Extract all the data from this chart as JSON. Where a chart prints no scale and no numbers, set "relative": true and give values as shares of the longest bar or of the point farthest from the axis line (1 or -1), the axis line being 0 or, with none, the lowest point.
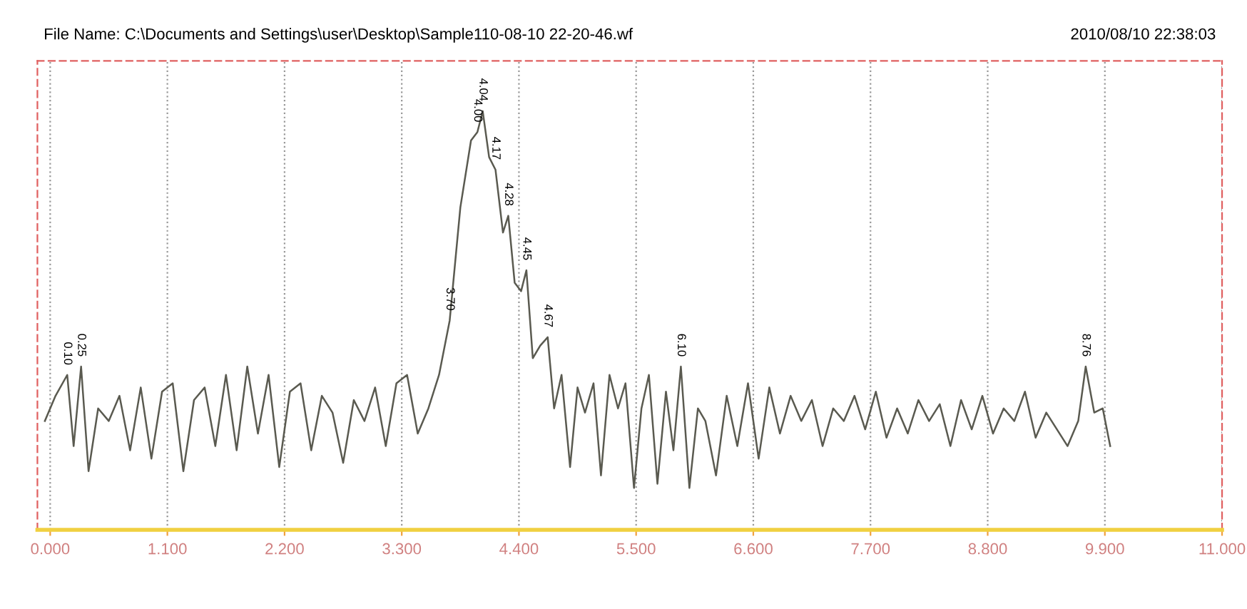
{
  "chart_data": {
    "type": "line",
    "relative": true,
    "title": "File Name: C:\\Documents and Settings\\user\\Desktop\\Sample110-08-10 22-20-46.wf",
    "annotations": [
      "2010/08/10 22:38:03",
      {
        "text": "0.10",
        "x": 0.16,
        "y": 0.37
      },
      {
        "text": "0.25",
        "x": 0.29,
        "y": 0.39
      },
      {
        "text": "3.70",
        "x": 3.75,
        "y": 0.5
      },
      {
        "text": "4.00",
        "x": 4.01,
        "y": 0.95
      },
      {
        "text": "4.04",
        "x": 4.06,
        "y": 1.0
      },
      {
        "text": "4.17",
        "x": 4.18,
        "y": 0.86
      },
      {
        "text": "4.28",
        "x": 4.3,
        "y": 0.75
      },
      {
        "text": "4.45",
        "x": 4.47,
        "y": 0.62
      },
      {
        "text": "4.67",
        "x": 4.67,
        "y": 0.46
      },
      {
        "text": "6.10",
        "x": 5.92,
        "y": 0.39
      },
      {
        "text": "8.76",
        "x": 9.72,
        "y": 0.39
      }
    ],
    "x": [
      -0.05,
      0.05,
      0.16,
      0.22,
      0.29,
      0.36,
      0.45,
      0.55,
      0.65,
      0.75,
      0.85,
      0.95,
      1.05,
      1.15,
      1.25,
      1.35,
      1.45,
      1.55,
      1.65,
      1.75,
      1.85,
      1.95,
      2.05,
      2.15,
      2.25,
      2.35,
      2.45,
      2.55,
      2.65,
      2.75,
      2.85,
      2.95,
      3.05,
      3.15,
      3.25,
      3.35,
      3.45,
      3.55,
      3.65,
      3.75,
      3.85,
      3.95,
      4.01,
      4.06,
      4.12,
      4.18,
      4.25,
      4.3,
      4.36,
      4.42,
      4.47,
      4.53,
      4.6,
      4.67,
      4.73,
      4.8,
      4.88,
      4.95,
      5.02,
      5.1,
      5.17,
      5.25,
      5.33,
      5.4,
      5.48,
      5.55,
      5.62,
      5.7,
      5.78,
      5.85,
      5.92,
      6.0,
      6.08,
      6.15,
      6.25,
      6.35,
      6.45,
      6.55,
      6.65,
      6.75,
      6.85,
      6.95,
      7.05,
      7.15,
      7.25,
      7.35,
      7.45,
      7.55,
      7.65,
      7.75,
      7.85,
      7.95,
      8.05,
      8.15,
      8.25,
      8.35,
      8.45,
      8.55,
      8.65,
      8.75,
      8.85,
      8.95,
      9.05,
      9.15,
      9.25,
      9.35,
      9.45,
      9.55,
      9.65,
      9.72,
      9.8,
      9.88,
      9.95
    ],
    "series": [
      {
        "color": "#5a5a50",
        "values": [
          0.26,
          0.32,
          0.37,
          0.2,
          0.39,
          0.14,
          0.29,
          0.26,
          0.32,
          0.19,
          0.34,
          0.17,
          0.33,
          0.35,
          0.14,
          0.31,
          0.34,
          0.2,
          0.37,
          0.19,
          0.39,
          0.23,
          0.37,
          0.15,
          0.33,
          0.35,
          0.19,
          0.32,
          0.28,
          0.16,
          0.31,
          0.26,
          0.34,
          0.2,
          0.35,
          0.37,
          0.23,
          0.29,
          0.37,
          0.5,
          0.77,
          0.93,
          0.95,
          1.0,
          0.89,
          0.86,
          0.71,
          0.75,
          0.59,
          0.57,
          0.62,
          0.41,
          0.44,
          0.46,
          0.29,
          0.37,
          0.15,
          0.34,
          0.28,
          0.35,
          0.13,
          0.37,
          0.29,
          0.35,
          0.1,
          0.29,
          0.37,
          0.11,
          0.33,
          0.19,
          0.39,
          0.1,
          0.29,
          0.26,
          0.13,
          0.32,
          0.2,
          0.35,
          0.17,
          0.34,
          0.23,
          0.32,
          0.26,
          0.31,
          0.2,
          0.29,
          0.26,
          0.32,
          0.24,
          0.33,
          0.22,
          0.29,
          0.23,
          0.31,
          0.26,
          0.3,
          0.2,
          0.31,
          0.24,
          0.32,
          0.23,
          0.29,
          0.26,
          0.33,
          0.22,
          0.28,
          0.24,
          0.2,
          0.26,
          0.39,
          0.28,
          0.29,
          0.2
        ]
      }
    ],
    "xlim": [
      -0.12,
      11.0
    ],
    "xticks": [
      {
        "value": 0,
        "label": "0.000"
      },
      {
        "value": 1.1,
        "label": "1.100"
      },
      {
        "value": 2.2,
        "label": "2.200"
      },
      {
        "value": 3.3,
        "label": "3.300"
      },
      {
        "value": 4.4,
        "label": "4.400"
      },
      {
        "value": 5.5,
        "label": "5.500"
      },
      {
        "value": 6.6,
        "label": "6.600"
      },
      {
        "value": 7.7,
        "label": "7.700"
      },
      {
        "value": 8.8,
        "label": "8.800"
      },
      {
        "value": 9.9,
        "label": "9.900"
      },
      {
        "value": 11.0,
        "label": "11.000"
      }
    ],
    "grid": "x",
    "line_style": "solid",
    "marker": "none"
  }
}
